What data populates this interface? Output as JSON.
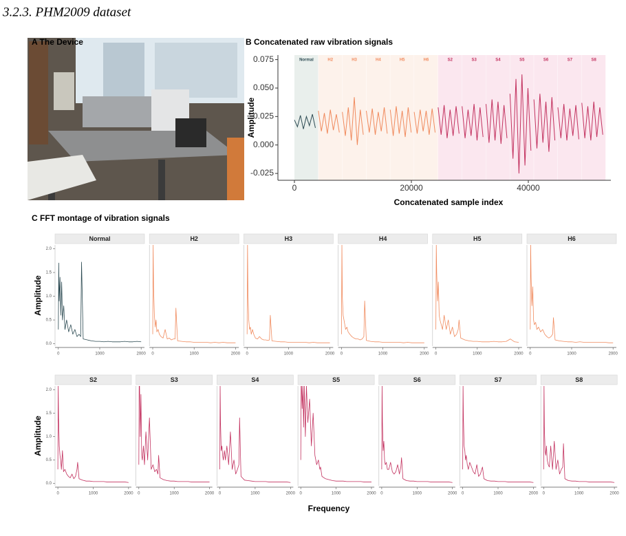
{
  "section_heading": "3.2.3. PHM2009 dataset",
  "panel_a": {
    "title": "A The Device"
  },
  "chart_data": [
    {
      "type": "line",
      "title": "B Concatenated raw vibration signals",
      "xlabel": "Concatenated sample index",
      "ylabel": "Amplitude",
      "xlim": [
        -2824,
        54118
      ],
      "ylim": [
        -0.031,
        0.079
      ],
      "xticks": [
        0,
        20000,
        40000
      ],
      "yticks": [
        {
          "value": 0.075,
          "label": "0.075"
        },
        {
          "value": 0.05,
          "label": "0.050"
        },
        {
          "value": 0.025,
          "label": "0.025"
        },
        {
          "value": 0,
          "label": "0.000"
        },
        {
          "value": -0.025,
          "label": "-0.025"
        }
      ],
      "series": [
        {
          "name": "Normal",
          "color": "#2c4a52",
          "band_color": "#e9efec",
          "span": [
            0,
            4096
          ],
          "x": [
            0,
            512,
            1024,
            1536,
            2048,
            2560,
            3072,
            3584
          ],
          "values": [
            0.022,
            0.016,
            0.026,
            0.014,
            0.025,
            0.017,
            0.027,
            0.015
          ]
        },
        {
          "name": "H2",
          "color": "#f08a5d",
          "band_color": "#fdf2eb",
          "span": [
            4096,
            8192
          ],
          "x": [
            4096,
            4608,
            5120,
            5632,
            6144,
            6656,
            7168,
            7680
          ],
          "values": [
            0.03,
            0.012,
            0.028,
            0.01,
            0.031,
            0.013,
            0.027,
            0.011
          ]
        },
        {
          "name": "H3",
          "color": "#f08a5d",
          "band_color": "#fdf2eb",
          "span": [
            8192,
            12288
          ],
          "x": [
            8192,
            8704,
            9216,
            9728,
            10240,
            10752,
            11264,
            11776
          ],
          "values": [
            0.029,
            0.008,
            0.033,
            0.004,
            0.042,
            0.0,
            0.031,
            0.009
          ]
        },
        {
          "name": "H4",
          "color": "#f08a5d",
          "band_color": "#fdf2eb",
          "span": [
            12288,
            16384
          ],
          "x": [
            12288,
            12800,
            13312,
            13824,
            14336,
            14848,
            15360,
            15872
          ],
          "values": [
            0.03,
            0.011,
            0.032,
            0.009,
            0.029,
            0.012,
            0.033,
            0.01
          ]
        },
        {
          "name": "H5",
          "color": "#f08a5d",
          "band_color": "#fdf2eb",
          "span": [
            16384,
            20480
          ],
          "x": [
            16384,
            16896,
            17408,
            17920,
            18432,
            18944,
            19456,
            19968
          ],
          "values": [
            0.031,
            0.008,
            0.034,
            0.01,
            0.03,
            0.007,
            0.033,
            0.011
          ]
        },
        {
          "name": "H6",
          "color": "#f08a5d",
          "band_color": "#fdf2eb",
          "span": [
            20480,
            24576
          ],
          "x": [
            20480,
            20992,
            21504,
            22016,
            22528,
            23040,
            23552,
            24064
          ],
          "values": [
            0.029,
            0.01,
            0.031,
            0.012,
            0.03,
            0.009,
            0.032,
            0.011
          ]
        },
        {
          "name": "S2",
          "color": "#c2305e",
          "band_color": "#fbe7ef",
          "span": [
            24576,
            28672
          ],
          "x": [
            24576,
            25088,
            25600,
            26112,
            26624,
            27136,
            27648,
            28160
          ],
          "values": [
            0.033,
            0.009,
            0.035,
            0.006,
            0.031,
            0.008,
            0.034,
            0.01
          ]
        },
        {
          "name": "S3",
          "color": "#c2305e",
          "band_color": "#fbe7ef",
          "span": [
            28672,
            32768
          ],
          "x": [
            28672,
            29184,
            29696,
            30208,
            30720,
            31232,
            31744,
            32256
          ],
          "values": [
            0.034,
            0.006,
            0.031,
            0.008,
            0.036,
            0.004,
            0.033,
            0.007
          ]
        },
        {
          "name": "S4",
          "color": "#c2305e",
          "band_color": "#fbe7ef",
          "span": [
            32768,
            36864
          ],
          "x": [
            32768,
            33280,
            33792,
            34304,
            34816,
            35328,
            35840,
            36352
          ],
          "values": [
            0.036,
            0.002,
            0.04,
            0.004,
            0.038,
            0.001,
            0.035,
            0.006
          ]
        },
        {
          "name": "S5",
          "color": "#c2305e",
          "band_color": "#fbe7ef",
          "span": [
            36864,
            40960
          ],
          "x": [
            36864,
            37376,
            37888,
            38400,
            38912,
            39424,
            39936,
            40448
          ],
          "values": [
            0.045,
            -0.012,
            0.058,
            -0.025,
            0.062,
            -0.018,
            0.05,
            -0.005
          ]
        },
        {
          "name": "S6",
          "color": "#c2305e",
          "band_color": "#fbe7ef",
          "span": [
            40960,
            45056
          ],
          "x": [
            40960,
            41472,
            41984,
            42496,
            43008,
            43520,
            44032,
            44544
          ],
          "values": [
            0.04,
            -0.003,
            0.045,
            0.002,
            0.038,
            -0.006,
            0.042,
            0.004
          ]
        },
        {
          "name": "S7",
          "color": "#c2305e",
          "band_color": "#fbe7ef",
          "span": [
            45056,
            49152
          ],
          "x": [
            45056,
            45568,
            46080,
            46592,
            47104,
            47616,
            48128,
            48640
          ],
          "values": [
            0.033,
            0.006,
            0.036,
            0.004,
            0.032,
            0.008,
            0.035,
            0.005
          ]
        },
        {
          "name": "S8",
          "color": "#c2305e",
          "band_color": "#fbe7ef",
          "span": [
            49152,
            53248
          ],
          "x": [
            49152,
            49664,
            50176,
            50688,
            51200,
            51712,
            52224,
            52736
          ],
          "values": [
            0.037,
            0.006,
            0.034,
            0.004,
            0.038,
            0.007,
            0.033,
            0.009
          ]
        }
      ]
    },
    {
      "type": "line",
      "title": "C FFT montage of vibration signals",
      "xlabel": "Frequency",
      "ylabel": "Amplitude",
      "facet_by_series": true,
      "xlim": [
        -80,
        2080
      ],
      "ylim": [
        -0.05,
        2.08
      ],
      "xticks": [
        0,
        1000,
        2000
      ],
      "yticks": [
        {
          "value": 0,
          "label": "0.0"
        },
        {
          "value": 0.5,
          "label": "0.5"
        },
        {
          "value": 1,
          "label": "1.0"
        },
        {
          "value": 1.5,
          "label": "1.5"
        },
        {
          "value": 2,
          "label": "2.0"
        }
      ],
      "x": [
        0,
        10,
        20,
        40,
        60,
        80,
        100,
        130,
        160,
        200,
        250,
        300,
        350,
        400,
        450,
        500,
        540,
        560,
        600,
        700,
        800,
        900,
        1000,
        1100,
        1200,
        1300,
        1400,
        1500,
        1600,
        1700,
        1800,
        1900,
        2000
      ],
      "series": [
        {
          "name": "Normal",
          "color": "#2c4a52",
          "values": [
            0.3,
            1.7,
            0.9,
            1.4,
            0.6,
            1.3,
            0.5,
            0.8,
            0.3,
            0.5,
            0.25,
            0.4,
            0.2,
            0.3,
            0.15,
            0.2,
            0.15,
            1.72,
            0.1,
            0.08,
            0.06,
            0.05,
            0.05,
            0.04,
            0.05,
            0.04,
            0.04,
            0.04,
            0.05,
            0.04,
            0.04,
            0.05,
            0.04
          ]
        },
        {
          "name": "H2",
          "color": "#f08a5d",
          "values": [
            0.2,
            2.1,
            1.2,
            0.6,
            0.35,
            0.5,
            0.25,
            0.3,
            0.2,
            0.15,
            0.12,
            0.3,
            0.1,
            0.12,
            0.08,
            0.1,
            0.1,
            0.75,
            0.06,
            0.05,
            0.04,
            0.04,
            0.03,
            0.03,
            0.03,
            0.03,
            0.02,
            0.03,
            0.02,
            0.03,
            0.02,
            0.02,
            0.02
          ]
        },
        {
          "name": "H3",
          "color": "#f08a5d",
          "values": [
            0.2,
            2.1,
            1.1,
            0.5,
            0.3,
            0.35,
            0.2,
            0.3,
            0.2,
            0.12,
            0.1,
            0.15,
            0.1,
            0.08,
            0.08,
            0.07,
            0.08,
            0.6,
            0.06,
            0.05,
            0.04,
            0.04,
            0.03,
            0.03,
            0.03,
            0.03,
            0.03,
            0.02,
            0.03,
            0.02,
            0.02,
            0.02,
            0.02
          ]
        },
        {
          "name": "H4",
          "color": "#f08a5d",
          "values": [
            0.2,
            2.1,
            1.0,
            0.6,
            0.5,
            0.4,
            0.3,
            0.35,
            0.25,
            0.2,
            0.15,
            0.12,
            0.1,
            0.1,
            0.08,
            0.1,
            0.15,
            0.9,
            0.07,
            0.05,
            0.04,
            0.04,
            0.03,
            0.03,
            0.03,
            0.03,
            0.03,
            0.02,
            0.03,
            0.02,
            0.02,
            0.02,
            0.02
          ]
        },
        {
          "name": "H5",
          "color": "#f08a5d",
          "values": [
            0.3,
            2.1,
            1.5,
            0.9,
            1.3,
            0.6,
            0.5,
            0.4,
            0.3,
            0.6,
            0.3,
            0.5,
            0.2,
            0.35,
            0.15,
            0.2,
            0.3,
            0.5,
            0.12,
            0.08,
            0.06,
            0.05,
            0.05,
            0.04,
            0.04,
            0.04,
            0.05,
            0.04,
            0.04,
            0.05,
            0.1,
            0.04,
            0.03
          ]
        },
        {
          "name": "H6",
          "color": "#f08a5d",
          "values": [
            0.3,
            2.1,
            1.4,
            0.8,
            1.2,
            0.5,
            0.4,
            0.45,
            0.3,
            0.35,
            0.25,
            0.3,
            0.2,
            0.15,
            0.12,
            0.15,
            0.2,
            0.55,
            0.08,
            0.06,
            0.05,
            0.04,
            0.04,
            0.03,
            0.04,
            0.03,
            0.03,
            0.03,
            0.03,
            0.03,
            0.03,
            0.02,
            0.02
          ]
        },
        {
          "name": "S2",
          "color": "#c2305e",
          "values": [
            0.3,
            2.1,
            1.4,
            0.8,
            0.6,
            0.5,
            0.3,
            0.7,
            0.25,
            0.3,
            0.2,
            0.15,
            0.12,
            0.2,
            0.1,
            0.15,
            0.3,
            0.45,
            0.1,
            0.07,
            0.05,
            0.05,
            0.04,
            0.04,
            0.04,
            0.04,
            0.03,
            0.03,
            0.03,
            0.03,
            0.03,
            0.03,
            0.02
          ]
        },
        {
          "name": "S3",
          "color": "#c2305e",
          "values": [
            0.4,
            2.1,
            2.1,
            1.0,
            1.9,
            0.6,
            0.5,
            0.8,
            0.4,
            1.1,
            0.5,
            1.4,
            0.3,
            0.4,
            0.25,
            0.3,
            0.2,
            0.6,
            0.12,
            0.08,
            0.06,
            0.05,
            0.05,
            0.04,
            0.04,
            0.04,
            0.04,
            0.03,
            0.03,
            0.03,
            0.03,
            0.03,
            0.03
          ]
        },
        {
          "name": "S4",
          "color": "#c2305e",
          "values": [
            0.3,
            2.1,
            1.3,
            0.7,
            0.8,
            0.6,
            0.5,
            0.7,
            0.5,
            0.8,
            0.4,
            1.1,
            0.3,
            0.5,
            0.2,
            0.3,
            0.4,
            1.4,
            0.15,
            0.07,
            0.06,
            0.05,
            0.04,
            0.04,
            0.04,
            0.04,
            0.03,
            0.03,
            0.03,
            0.03,
            0.03,
            0.03,
            0.02
          ]
        },
        {
          "name": "S5",
          "color": "#c2305e",
          "values": [
            0.5,
            2.1,
            2.1,
            1.6,
            2.1,
            1.2,
            2.1,
            1.0,
            2.1,
            1.3,
            1.8,
            0.8,
            1.5,
            0.6,
            0.4,
            0.5,
            0.3,
            0.35,
            0.15,
            0.1,
            0.08,
            0.06,
            0.05,
            0.05,
            0.05,
            0.04,
            0.04,
            0.04,
            0.04,
            0.04,
            0.03,
            0.03,
            0.03
          ]
        },
        {
          "name": "S6",
          "color": "#c2305e",
          "values": [
            0.3,
            2.1,
            1.3,
            0.7,
            0.9,
            0.5,
            0.4,
            0.45,
            0.3,
            0.3,
            0.45,
            0.25,
            0.2,
            0.25,
            0.4,
            0.2,
            0.35,
            0.55,
            0.1,
            0.06,
            0.05,
            0.05,
            0.04,
            0.04,
            0.04,
            0.04,
            0.03,
            0.03,
            0.03,
            0.03,
            0.03,
            0.03,
            0.02
          ]
        },
        {
          "name": "S7",
          "color": "#c2305e",
          "values": [
            0.3,
            2.1,
            1.4,
            0.8,
            0.7,
            0.5,
            0.6,
            0.4,
            0.3,
            0.45,
            0.35,
            0.25,
            0.2,
            0.4,
            0.15,
            0.2,
            0.3,
            0.35,
            0.1,
            0.06,
            0.05,
            0.05,
            0.04,
            0.04,
            0.04,
            0.03,
            0.03,
            0.03,
            0.03,
            0.03,
            0.03,
            0.03,
            0.02
          ]
        },
        {
          "name": "S8",
          "color": "#c2305e",
          "values": [
            0.3,
            2.1,
            1.2,
            0.7,
            0.6,
            0.8,
            0.5,
            0.4,
            0.35,
            0.8,
            0.3,
            0.9,
            0.3,
            0.5,
            0.2,
            0.3,
            0.35,
            0.85,
            0.1,
            0.06,
            0.05,
            0.05,
            0.04,
            0.04,
            0.04,
            0.03,
            0.03,
            0.03,
            0.03,
            0.03,
            0.03,
            0.03,
            0.02
          ]
        }
      ]
    }
  ]
}
